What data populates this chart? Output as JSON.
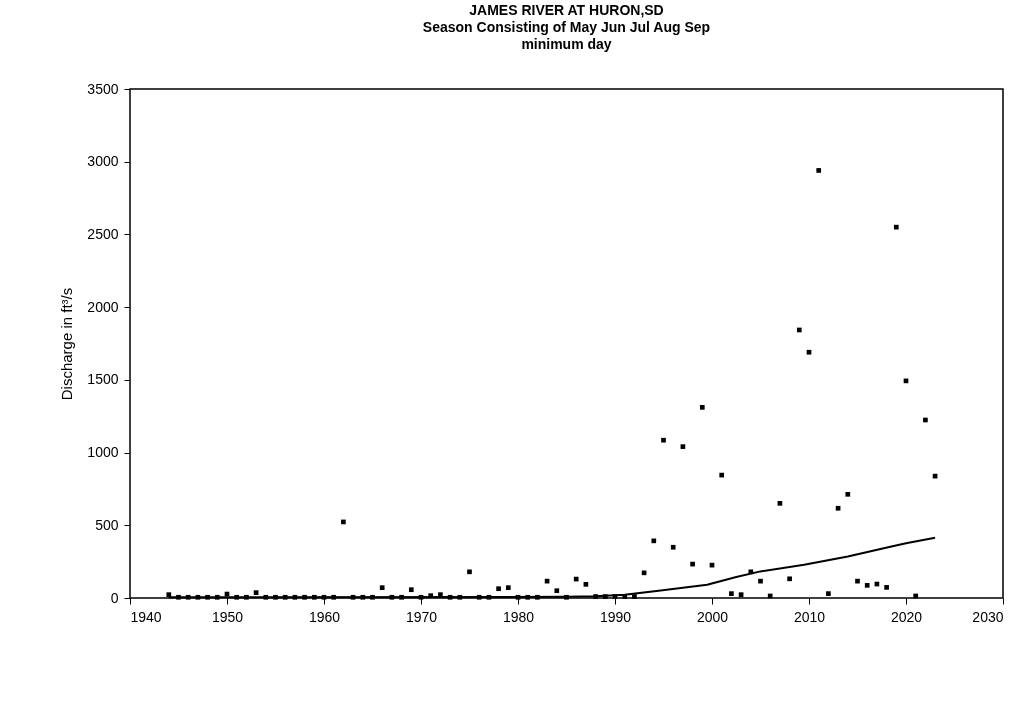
{
  "chart_data": {
    "type": "scatter",
    "title": "JAMES RIVER AT HURON,SD",
    "subtitle": "Season Consisting of May Jun Jul Aug Sep\nminimum day",
    "ylabel": "Discharge in ft³/s",
    "xlim": [
      1940,
      2030
    ],
    "xticks": [
      1940,
      1950,
      1960,
      1970,
      1980,
      1990,
      2000,
      2010,
      2020,
      2030
    ],
    "ylim": [
      0,
      3500
    ],
    "yticks": [
      0,
      500,
      1000,
      1500,
      2000,
      2500,
      3000,
      3500
    ],
    "grid": false,
    "series": [
      {
        "marker": "square",
        "color": "#000000",
        "x": [
          1944,
          1945,
          1946,
          1947,
          1948,
          1949,
          1950,
          1951,
          1952,
          1953,
          1954,
          1955,
          1956,
          1957,
          1958,
          1959,
          1960,
          1961,
          1962,
          1963,
          1964,
          1965,
          1966,
          1967,
          1968,
          1969,
          1970,
          1971,
          1972,
          1973,
          1974,
          1975,
          1976,
          1977,
          1978,
          1979,
          1980,
          1981,
          1982,
          1983,
          1984,
          1985,
          1986,
          1987,
          1988,
          1989,
          1990,
          1991,
          1992,
          1993,
          1994,
          1995,
          1996,
          1997,
          1998,
          1999,
          2000,
          2001,
          2002,
          2003,
          2004,
          2005,
          2006,
          2007,
          2008,
          2009,
          2010,
          2011,
          2012,
          2013,
          2014,
          2015,
          2016,
          2017,
          2018,
          2019,
          2020,
          2021,
          2022,
          2023
        ],
        "values": [
          23,
          5,
          5,
          5,
          5,
          5,
          27,
          5,
          5,
          37,
          5,
          5,
          5,
          5,
          5,
          5,
          5,
          5,
          523,
          5,
          5,
          5,
          71,
          5,
          5,
          57,
          5,
          16,
          23,
          5,
          5,
          180,
          5,
          5,
          64,
          71,
          5,
          5,
          5,
          116,
          50,
          5,
          130,
          94,
          10,
          10,
          10,
          10,
          10,
          173,
          393,
          1085,
          349,
          1041,
          233,
          1311,
          226,
          845,
          30,
          23,
          180,
          116,
          14,
          651,
          132,
          1843,
          1690,
          2940,
          30,
          617,
          713,
          116,
          87,
          96,
          73,
          2550,
          1493,
          14,
          1224,
          838
        ]
      },
      {
        "type": "line",
        "color": "#000000",
        "x": [
          1944,
          1985,
          1988,
          1991,
          1994.5,
          1999.5,
          2002.5,
          2005,
          2009.5,
          2014,
          2018.5,
          2020,
          2023
        ],
        "values": [
          5,
          8,
          12,
          23,
          50,
          91,
          144,
          183,
          228,
          285,
          354,
          377,
          415
        ]
      }
    ]
  }
}
